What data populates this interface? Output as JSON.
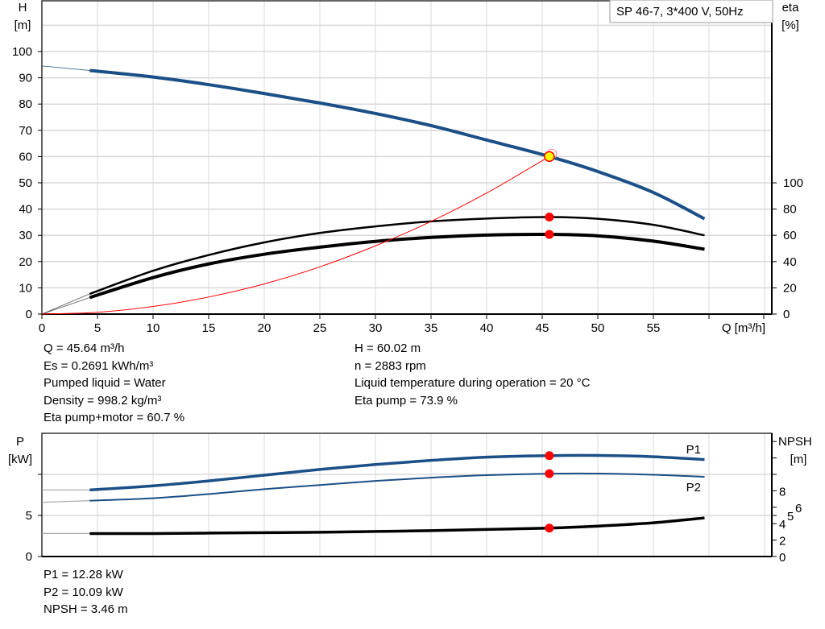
{
  "legend_box": "SP 46-7, 3*400 V, 50Hz",
  "colors": {
    "head": "#1b4f87",
    "efficiency": "#000000",
    "system_curve": "#ff0000",
    "operating_point": "#ff0000",
    "duty_point_fill": "#ffff00",
    "power": "#1b4f87",
    "npsh": "#000000",
    "grid": "#d8d8d8"
  },
  "info_top": {
    "left": [
      "Q = 45.64 m³/h",
      "Es = 0.2691 kWh/m³",
      "Pumped liquid = Water",
      "Density = 998.2 kg/m³",
      "Eta pump+motor = 60.7 %"
    ],
    "right": [
      "H = 60.02 m",
      "n = 2883 rpm",
      "Liquid temperature during operation = 20 °C",
      "Eta pump = 73.9 %"
    ]
  },
  "info_bottom": [
    "P1 = 12.28 kW",
    "P2 = 10.09 kW",
    "NPSH = 3.46 m"
  ],
  "chart_data": [
    {
      "type": "line",
      "xlabel": "Q [m³/h]",
      "ylabel": "H\n[m]",
      "y2label": "eta\n[%]",
      "xlim": [
        0,
        68
      ],
      "ylim": [
        0,
        110
      ],
      "y2lim": [
        0,
        220
      ],
      "x_ticks": [
        "0",
        "5",
        "10",
        "15",
        "20",
        "25",
        "30",
        "35",
        "40",
        "45",
        "50",
        "55"
      ],
      "y_ticks": [
        "0",
        "10",
        "20",
        "30",
        "40",
        "50",
        "60",
        "70",
        "80",
        "90",
        "100"
      ],
      "y2_ticks": [
        "0",
        "20",
        "40",
        "60",
        "80",
        "100"
      ],
      "grid": true,
      "series": [
        {
          "id": "head",
          "axis": "left",
          "x": [
            4.3,
            10,
            15,
            20,
            25,
            30,
            35,
            40,
            45.64,
            50,
            55,
            59.6
          ],
          "y": [
            92.8,
            90.3,
            87.4,
            84,
            80.4,
            76.4,
            71.8,
            66.3,
            60.02,
            54.3,
            46.3,
            36.3
          ],
          "extension": {
            "x": [
              0,
              4.3
            ],
            "y": [
              94.5,
              92.8
            ]
          }
        },
        {
          "id": "eta-pump",
          "axis": "right",
          "x": [
            4.3,
            10,
            15,
            20,
            25,
            30,
            35,
            40,
            45.64,
            50,
            55,
            59.6
          ],
          "y": [
            15.4,
            33,
            45,
            54.6,
            61.8,
            66.8,
            70.6,
            72.8,
            73.9,
            72.6,
            68,
            60
          ],
          "extension": {
            "x": [
              0,
              4.3
            ],
            "y": [
              0,
              15.4
            ]
          }
        },
        {
          "id": "eta-pump-motor",
          "axis": "right",
          "x": [
            4.3,
            10,
            15,
            20,
            25,
            30,
            35,
            40,
            45.64,
            50,
            55,
            59.6
          ],
          "y": [
            12.6,
            27.8,
            38.2,
            45.6,
            51,
            55.4,
            58.4,
            60.2,
            60.7,
            59.6,
            55.6,
            49.4
          ],
          "extension": {
            "x": [
              0,
              4.3
            ],
            "y": [
              0,
              12.6
            ]
          }
        },
        {
          "id": "system-curve",
          "axis": "left",
          "x": [
            0,
            5,
            10,
            15,
            20,
            25,
            30,
            35,
            40,
            45.64
          ],
          "y": [
            0,
            0.7,
            2.9,
            6.5,
            11.5,
            18,
            26,
            35.3,
            46.1,
            60.02
          ]
        }
      ],
      "operating_points": [
        {
          "id": "duty-point",
          "x": 45.64,
          "y": 60.02,
          "axis": "left"
        },
        {
          "id": "eta-pump-point",
          "x": 45.64,
          "y": 73.9,
          "axis": "right"
        },
        {
          "id": "eta-pump-motor-point",
          "x": 45.64,
          "y": 60.7,
          "axis": "right"
        }
      ]
    },
    {
      "type": "line",
      "ylabel": "P\n[kW]",
      "y2label": "NPSH\n[m]",
      "xlim": [
        0,
        68
      ],
      "ylim": [
        0,
        15
      ],
      "y2lim": [
        0,
        15
      ],
      "y_ticks": [
        "0",
        "5"
      ],
      "y2_ticks": [
        "0",
        "2",
        "4",
        "5",
        "6",
        "8"
      ],
      "grid": true,
      "series": [
        {
          "id": "P1",
          "name": "P1",
          "axis": "left",
          "x": [
            4.3,
            10,
            15,
            20,
            25,
            30,
            35,
            40,
            45.64,
            50,
            55,
            59.6
          ],
          "y": [
            8.1,
            8.6,
            9.2,
            9.9,
            10.6,
            11.2,
            11.7,
            12.1,
            12.28,
            12.3,
            12.15,
            11.8
          ],
          "extension": {
            "x": [
              0,
              4.3
            ],
            "y": [
              8.1,
              8.1
            ]
          }
        },
        {
          "id": "P2",
          "name": "P2",
          "axis": "left",
          "x": [
            4.3,
            10,
            15,
            20,
            25,
            30,
            35,
            40,
            45.64,
            50,
            55,
            59.6
          ],
          "y": [
            6.8,
            7.1,
            7.6,
            8.2,
            8.7,
            9.2,
            9.6,
            9.9,
            10.09,
            10.1,
            9.95,
            9.7
          ],
          "extension": {
            "x": [
              0,
              4.3
            ],
            "y": [
              6.6,
              6.8
            ]
          }
        },
        {
          "id": "NPSH",
          "axis": "right",
          "x": [
            4.3,
            10,
            15,
            20,
            25,
            30,
            35,
            40,
            45.64,
            50,
            55,
            59.6
          ],
          "y": [
            2.8,
            2.8,
            2.85,
            2.9,
            2.95,
            3.05,
            3.15,
            3.3,
            3.46,
            3.7,
            4.1,
            4.7
          ],
          "extension": {
            "x": [
              0,
              4.3
            ],
            "y": [
              2.8,
              2.8
            ]
          }
        }
      ],
      "operating_points": [
        {
          "id": "P1-point",
          "x": 45.64,
          "y": 12.28
        },
        {
          "id": "P2-point",
          "x": 45.64,
          "y": 10.09
        },
        {
          "id": "NPSH-point",
          "x": 45.64,
          "y": 3.46
        }
      ]
    }
  ]
}
